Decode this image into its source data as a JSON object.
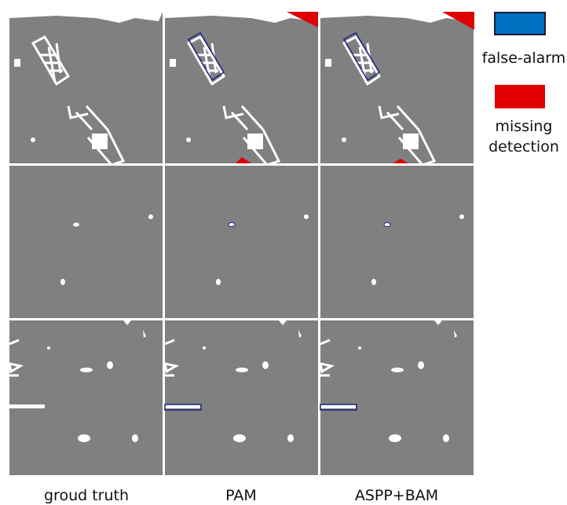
{
  "columns": [
    "groud truth",
    "PAM",
    "ASPP+BAM"
  ],
  "legend": {
    "false_alarm": "false-alarm",
    "missing_detection": [
      "missing",
      "detection"
    ]
  }
}
